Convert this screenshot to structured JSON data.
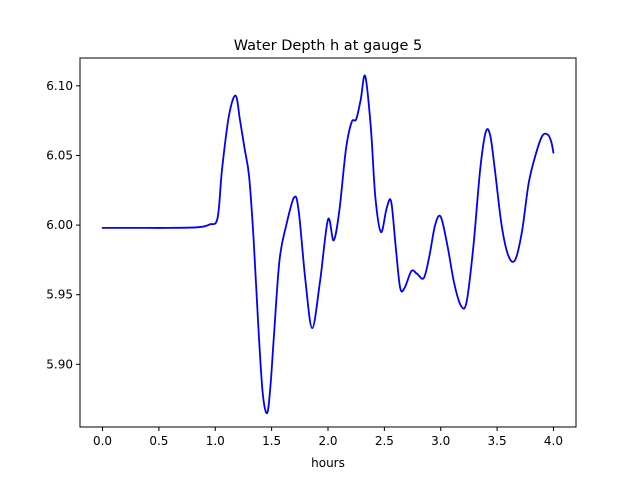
{
  "chart_data": {
    "type": "line",
    "title": "Water Depth h at gauge 5",
    "xlabel": "hours",
    "ylabel": "",
    "xlim": [
      -0.2,
      4.2
    ],
    "ylim": [
      5.855,
      6.12
    ],
    "x_ticks": [
      0.0,
      0.5,
      1.0,
      1.5,
      2.0,
      2.5,
      3.0,
      3.5,
      4.0
    ],
    "x_tick_labels": [
      "0.0",
      "0.5",
      "1.0",
      "1.5",
      "2.0",
      "2.5",
      "3.0",
      "3.5",
      "4.0"
    ],
    "y_ticks": [
      5.9,
      5.95,
      6.0,
      6.05,
      6.1
    ],
    "y_tick_labels": [
      "5.90",
      "5.95",
      "6.00",
      "6.05",
      "6.10"
    ],
    "grid": false,
    "legend": "none",
    "series": [
      {
        "color": "#0000ff",
        "x": [
          0.0,
          0.3,
          0.6,
          0.85,
          0.95,
          1.02,
          1.06,
          1.12,
          1.18,
          1.22,
          1.26,
          1.3,
          1.34,
          1.38,
          1.42,
          1.46,
          1.49,
          1.52,
          1.57,
          1.63,
          1.7,
          1.74,
          1.8,
          1.86,
          1.93,
          2.0,
          2.05,
          2.1,
          2.16,
          2.21,
          2.25,
          2.29,
          2.33,
          2.38,
          2.42,
          2.47,
          2.52,
          2.56,
          2.6,
          2.64,
          2.68,
          2.74,
          2.79,
          2.85,
          2.9,
          2.95,
          3.0,
          3.06,
          3.12,
          3.18,
          3.23,
          3.29,
          3.35,
          3.4,
          3.44,
          3.48,
          3.54,
          3.6,
          3.66,
          3.72,
          3.78,
          3.84,
          3.9,
          3.95,
          3.98,
          4.0
        ],
        "y": [
          5.998,
          5.998,
          5.998,
          5.9985,
          6.0005,
          6.005,
          6.04,
          6.078,
          6.093,
          6.075,
          6.055,
          6.035,
          5.99,
          5.93,
          5.88,
          5.865,
          5.885,
          5.92,
          5.975,
          6.0,
          6.02,
          6.01,
          5.96,
          5.926,
          5.96,
          6.004,
          5.989,
          6.01,
          6.055,
          6.074,
          6.076,
          6.09,
          6.107,
          6.07,
          6.02,
          5.995,
          6.012,
          6.017,
          5.985,
          5.955,
          5.955,
          5.967,
          5.965,
          5.962,
          5.978,
          6.0,
          6.006,
          5.985,
          5.958,
          5.942,
          5.945,
          5.985,
          6.04,
          6.067,
          6.064,
          6.04,
          6.0,
          5.978,
          5.975,
          5.995,
          6.03,
          6.05,
          6.064,
          6.065,
          6.06,
          6.052
        ]
      }
    ]
  }
}
